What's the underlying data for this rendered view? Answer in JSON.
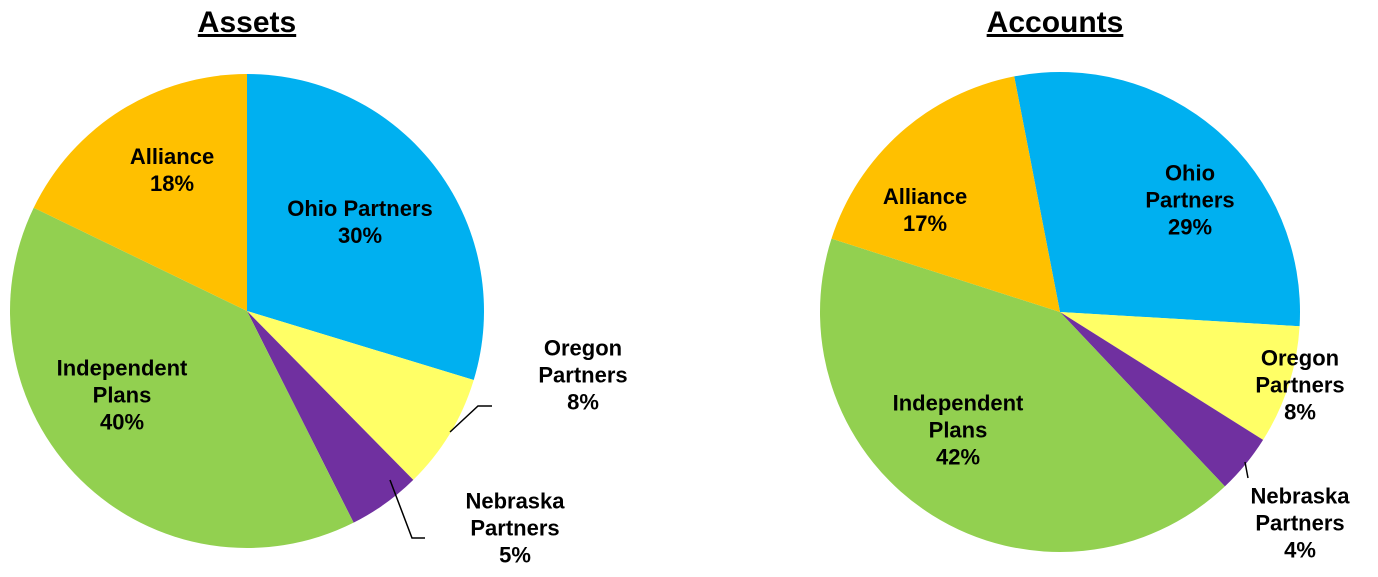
{
  "chart_data": [
    {
      "type": "pie",
      "title": "Assets",
      "categories": [
        "Ohio Partners",
        "Oregon Partners",
        "Nebraska Partners",
        "Independent Plans",
        "Alliance"
      ],
      "values": [
        30,
        8,
        5,
        40,
        18
      ],
      "value_labels": [
        "30%",
        "8%",
        "5%",
        "40%",
        "18%"
      ],
      "colors": [
        "#00b0f0",
        "#ffff66",
        "#7030a0",
        "#92d050",
        "#ffc000"
      ]
    },
    {
      "type": "pie",
      "title": "Accounts",
      "categories": [
        "Ohio Partners",
        "Oregon Partners",
        "Nebraska Partners",
        "Independent Plans",
        "Alliance"
      ],
      "values": [
        29,
        8,
        4,
        42,
        17
      ],
      "value_labels": [
        "29%",
        "8%",
        "4%",
        "42%",
        "17%"
      ],
      "colors": [
        "#00b0f0",
        "#ffff66",
        "#7030a0",
        "#92d050",
        "#ffc000"
      ]
    }
  ]
}
